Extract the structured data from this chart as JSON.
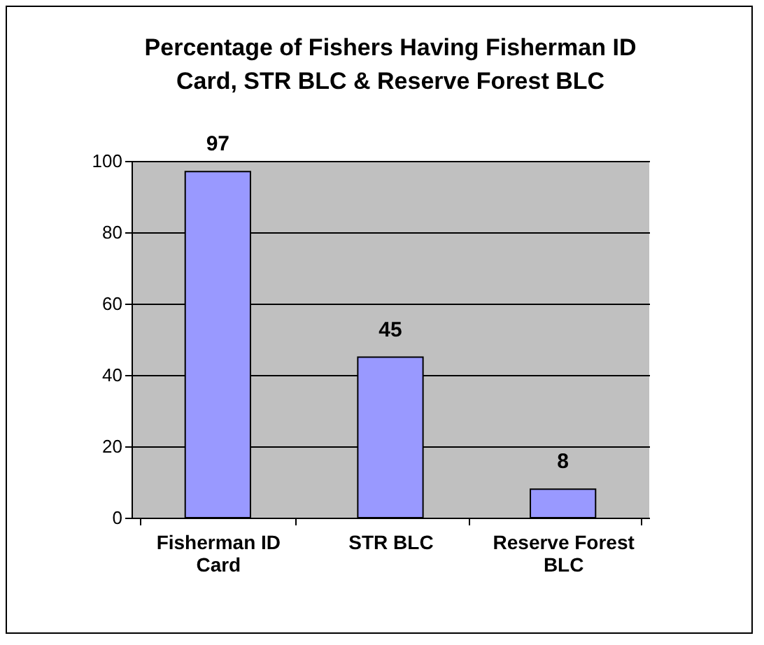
{
  "chart_data": {
    "type": "bar",
    "title": "Percentage of Fishers Having Fisherman ID Card, STR BLC & Reserve Forest BLC",
    "categories": [
      "Fisherman ID Card",
      "STR BLC",
      "Reserve Forest BLC"
    ],
    "values": [
      97,
      45,
      8
    ],
    "color": "#9999ff",
    "ylim": [
      0,
      100
    ],
    "yticks": [
      0,
      20,
      40,
      60,
      80,
      100
    ],
    "grid": "y",
    "data_labels": true
  }
}
